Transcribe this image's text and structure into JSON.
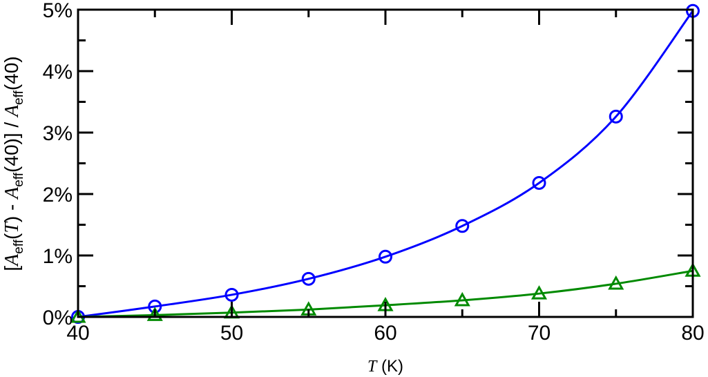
{
  "chart_data": {
    "type": "line",
    "title": "",
    "xlabel": "T (K)",
    "xlabel_italic": "T",
    "xlabel_unit": " (K)",
    "ylabel": "[A_eff(T) - A_eff(40)] / A_eff(40)",
    "ylabel_parts": {
      "bracket_open": "[",
      "A": "A",
      "eff": "eff",
      "T_part": "(",
      "T": "T",
      "mid": ") - ",
      "forty": "(40)] / ",
      "forty_end": "(40)"
    },
    "xlim": [
      40,
      80
    ],
    "ylim": [
      0,
      5
    ],
    "xticks": [
      40,
      50,
      60,
      70,
      80
    ],
    "xtick_labels": [
      "40",
      "50",
      "60",
      "70",
      "80"
    ],
    "yticks": [
      0,
      1,
      2,
      3,
      4,
      5
    ],
    "ytick_labels": [
      "0%",
      "1%",
      "2%",
      "3%",
      "4%",
      "5%"
    ],
    "grid": false,
    "legend": "none",
    "x": [
      40,
      45,
      50,
      55,
      60,
      65,
      70,
      75,
      80
    ],
    "series": [
      {
        "name": "circles",
        "color": "#0000ff",
        "marker": "circle",
        "values": [
          0,
          0.17,
          0.36,
          0.62,
          0.98,
          1.48,
          2.18,
          3.26,
          4.98
        ]
      },
      {
        "name": "triangles",
        "color": "#008a00",
        "marker": "triangle",
        "values": [
          0,
          0.03,
          0.07,
          0.12,
          0.19,
          0.27,
          0.38,
          0.54,
          0.75
        ]
      }
    ]
  }
}
